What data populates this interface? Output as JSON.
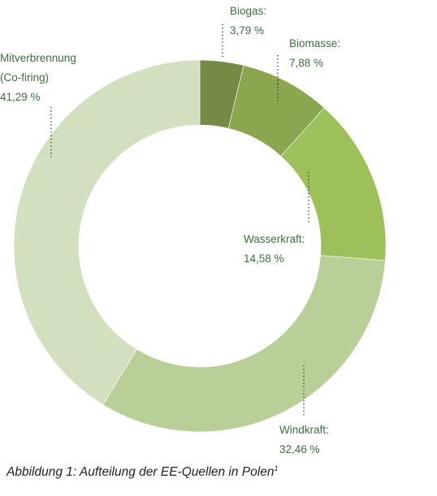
{
  "chart_data": {
    "type": "donut",
    "series": [
      {
        "name": "Biogas:",
        "value": 3.79,
        "value_label": "3,79 %",
        "color": "#758b45"
      },
      {
        "name": "Biomasse:",
        "value": 7.88,
        "value_label": "7,88 %",
        "color": "#8aa74f"
      },
      {
        "name": "Wasserkraft:",
        "value": 14.58,
        "value_label": "14,58 %",
        "color": "#9dc05a"
      },
      {
        "name": "Windkraft:",
        "value": 32.46,
        "value_label": "32,46 %",
        "color": "#b8d097"
      },
      {
        "name": "Mitverbrennung (Co-firing)",
        "name_lines": [
          "Mitverbrennung",
          "(Co-firing)"
        ],
        "value": 41.29,
        "value_label": "41,29 %",
        "color": "#d2e0bf"
      }
    ],
    "start_angle_deg": 0,
    "direction": "clockwise"
  },
  "caption": {
    "text": "Abbildung 1: Aufteilung der EE-Quellen in Polen",
    "footnote_mark": "1"
  }
}
